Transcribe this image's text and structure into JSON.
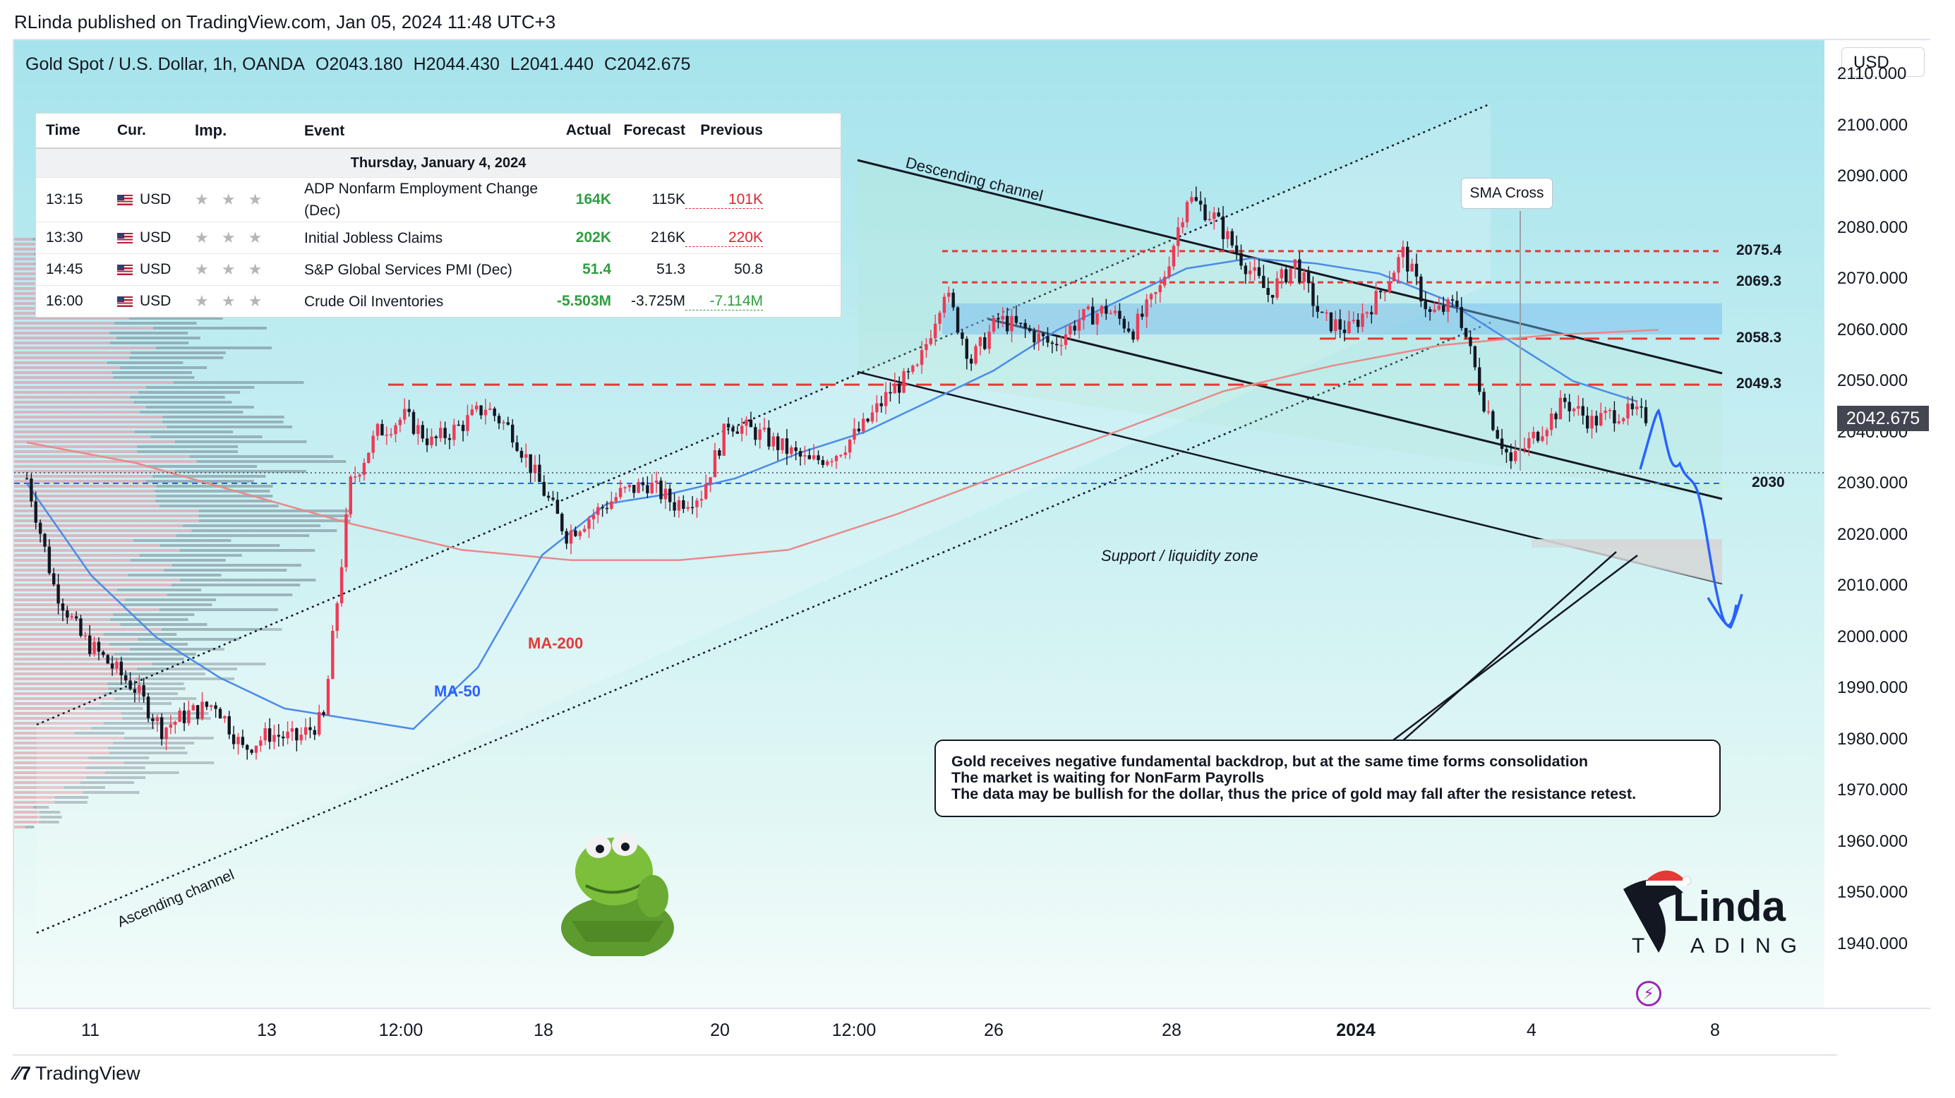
{
  "publish_line": "RLinda published on TradingView.com, Jan 05, 2024 11:48 UTC+3",
  "header": {
    "symbol": "Gold Spot / U.S. Dollar, 1h, OANDA",
    "open": "O2043.180",
    "high": "H2044.430",
    "low": "L2041.440",
    "close": "C2042.675"
  },
  "price_axis": {
    "currency": "USD",
    "last_price": "2042.675",
    "ticks": [
      "2110.000",
      "2100.000",
      "2090.000",
      "2080.000",
      "2070.000",
      "2060.000",
      "2050.000",
      "2040.000",
      "2030.000",
      "2020.000",
      "2010.000",
      "2000.000",
      "1990.000",
      "1980.000",
      "1970.000",
      "1960.000",
      "1950.000",
      "1940.000"
    ]
  },
  "time_axis": {
    "ticks": [
      {
        "label": "11",
        "bold": false
      },
      {
        "label": "13",
        "bold": false
      },
      {
        "label": "12:00",
        "bold": false
      },
      {
        "label": "18",
        "bold": false
      },
      {
        "label": "20",
        "bold": false
      },
      {
        "label": "12:00",
        "bold": false
      },
      {
        "label": "26",
        "bold": false
      },
      {
        "label": "28",
        "bold": false
      },
      {
        "label": "2024",
        "bold": true
      },
      {
        "label": "4",
        "bold": false
      },
      {
        "label": "8",
        "bold": false
      }
    ]
  },
  "events_table": {
    "columns": {
      "time": "Time",
      "cur": "Cur.",
      "imp": "Imp.",
      "event": "Event",
      "actual": "Actual",
      "forecast": "Forecast",
      "previous": "Previous"
    },
    "day": "Thursday, January 4, 2024",
    "rows": [
      {
        "time": "13:15",
        "cur": "USD",
        "imp": "★ ★ ★",
        "event": "ADP Nonfarm Employment Change (Dec)",
        "actual": "164K",
        "forecast": "115K",
        "previous": "101K",
        "actual_color": "green",
        "previous_color": "red"
      },
      {
        "time": "13:30",
        "cur": "USD",
        "imp": "★ ★ ★",
        "event": "Initial Jobless Claims",
        "actual": "202K",
        "forecast": "216K",
        "previous": "220K",
        "actual_color": "green",
        "previous_color": "red"
      },
      {
        "time": "14:45",
        "cur": "USD",
        "imp": "★ ★ ★",
        "event": "S&P Global Services PMI (Dec)",
        "actual": "51.4",
        "forecast": "51.3",
        "previous": "50.8",
        "actual_color": "green",
        "previous_color": "black"
      },
      {
        "time": "16:00",
        "cur": "USD",
        "imp": "★ ★ ★",
        "event": "Crude Oil Inventories",
        "actual": "-5.503M",
        "forecast": "-3.725M",
        "previous": "-7.114M",
        "actual_color": "green",
        "previous_color": "green"
      }
    ]
  },
  "annotations": {
    "descending_channel": "Descending channel",
    "ascending_channel": "Ascending channel",
    "sma_cross": "SMA Cross",
    "support_zone": "Support / liquidity zone",
    "ma200": "MA-200",
    "ma50": "MA-50",
    "note_lines": [
      "Gold receives negative fundamental backdrop, but at the same time forms consolidation",
      "The market is waiting for NonFarm Payrolls",
      "The data may be bullish for the dollar, thus the price of gold may fall after the resistance retest."
    ]
  },
  "logo_text": {
    "top": "Linda",
    "bottom": "ADING",
    "t": "T"
  },
  "tradingview": "TradingView",
  "colors": {
    "up_candle": "#ef3a56",
    "down_candle": "#131722",
    "ma50": "#4b8be6",
    "ma200": "#e88a8a",
    "level_line": "#e53935",
    "support_line": "#2962ff",
    "forecast_path": "#2962ff"
  },
  "chart_data": {
    "type": "line",
    "title": "Gold Spot / U.S. Dollar, 1h, OANDA",
    "xlabel": "",
    "ylabel": "",
    "ylim": [
      1935,
      2118
    ],
    "x_labels": [
      "11",
      "13",
      "12:00",
      "18",
      "20",
      "12:00",
      "26",
      "28",
      "2024",
      "4",
      "8"
    ],
    "series": [
      {
        "name": "price",
        "values": [
          2031,
          2010,
          2000,
          1995,
          1990,
          1982,
          1985,
          1987,
          1978,
          1981,
          1980,
          1984,
          2030,
          2040,
          2043,
          2038,
          2041,
          2045,
          2040,
          2030,
          2020,
          2024,
          2028,
          2030,
          2026,
          2028,
          2042,
          2040,
          2037,
          2034,
          2036,
          2041,
          2048,
          2052,
          2068,
          2054,
          2062,
          2060,
          2057,
          2062,
          2064,
          2060,
          2068,
          2086,
          2082,
          2074,
          2067,
          2073,
          2062,
          2060,
          2066,
          2075,
          2063,
          2065,
          2046,
          2034,
          2040,
          2046,
          2042,
          2044,
          2043
        ]
      },
      {
        "name": "MA-50",
        "values": [
          2030,
          2012,
          2000,
          1992,
          1986,
          1984,
          1982,
          1994,
          2016,
          2026,
          2028,
          2031,
          2036,
          2040,
          2046,
          2052,
          2060,
          2066,
          2072,
          2074,
          2073,
          2071,
          2066,
          2058,
          2050,
          2046
        ]
      },
      {
        "name": "MA-200",
        "values": [
          2038,
          2034,
          2028,
          2022,
          2017,
          2015,
          2015,
          2017,
          2024,
          2032,
          2040,
          2048,
          2053,
          2057,
          2059,
          2060
        ]
      }
    ],
    "levels": [
      {
        "label": "2075.4",
        "value": 2075.4
      },
      {
        "label": "2069.3",
        "value": 2069.3
      },
      {
        "label": "2058.3",
        "value": 2058.3
      },
      {
        "label": "2049.3",
        "value": 2049.3
      },
      {
        "label": "2030",
        "value": 2030
      }
    ]
  }
}
